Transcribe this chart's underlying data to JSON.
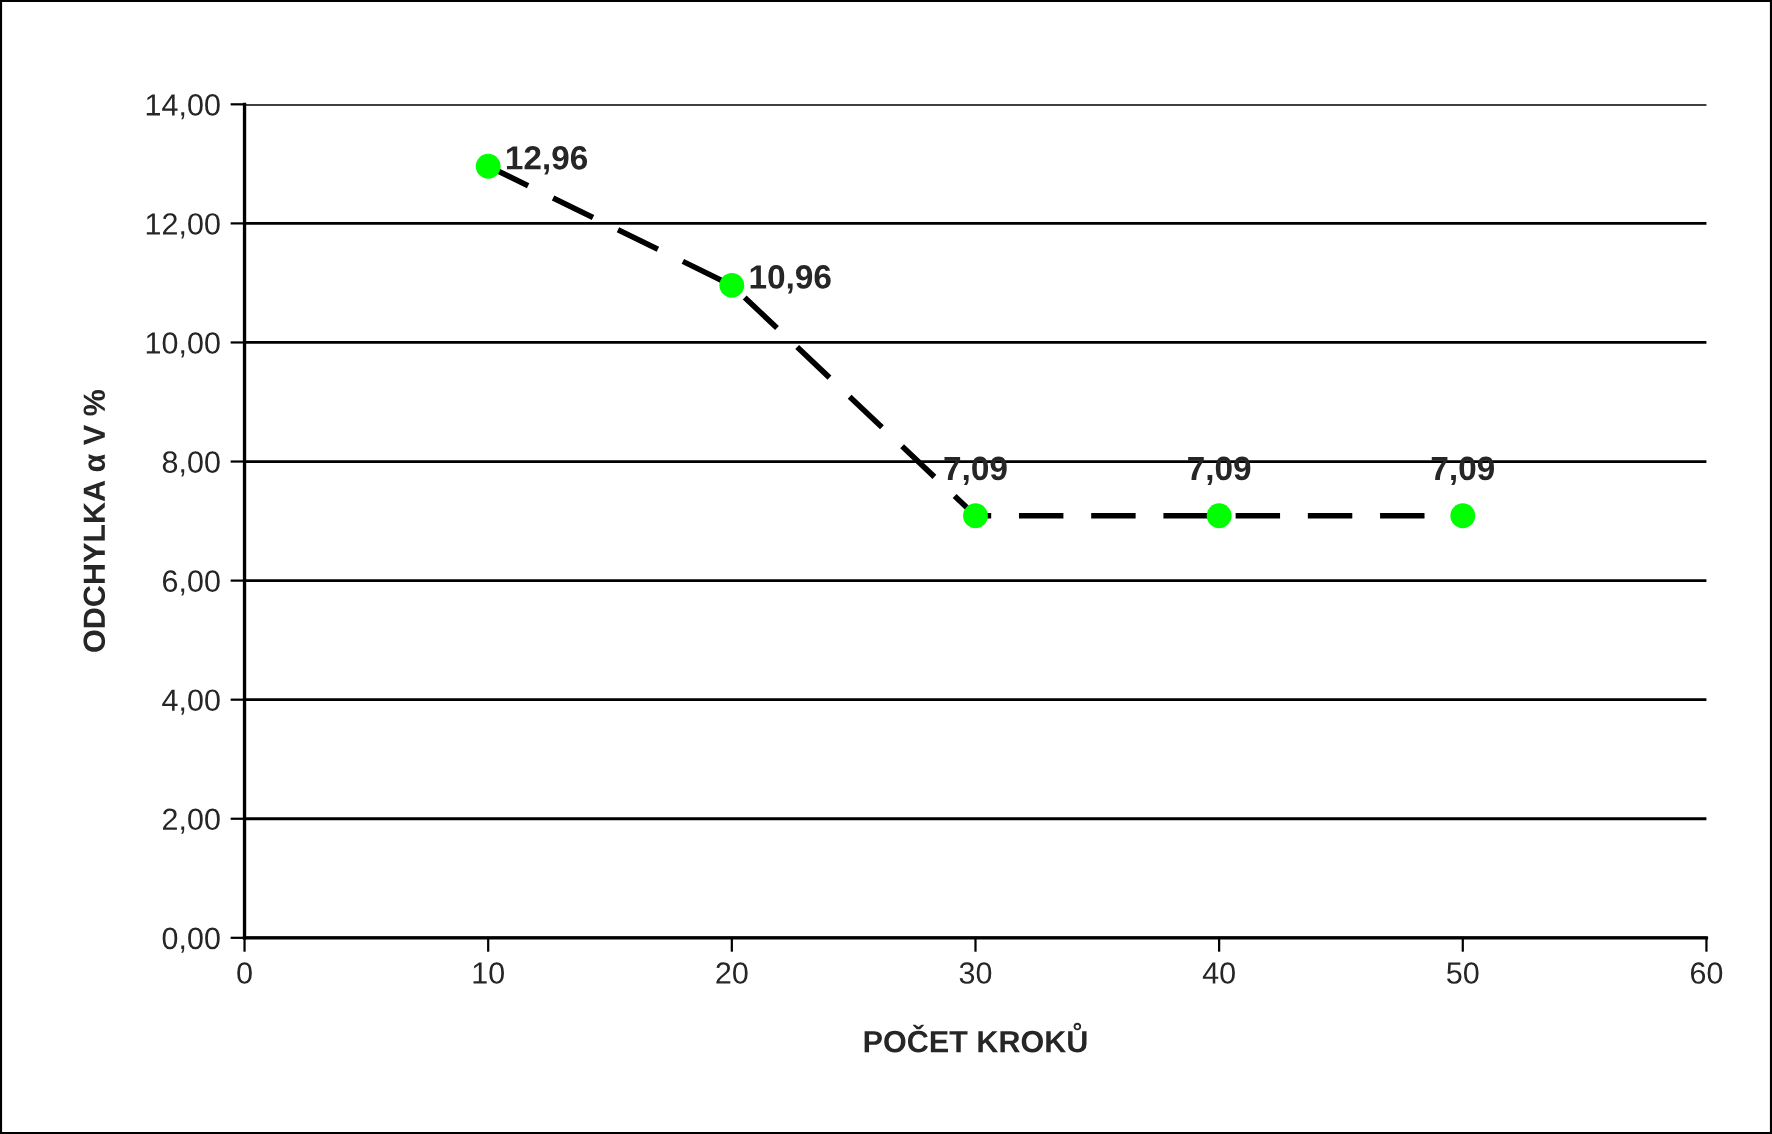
{
  "chart_data": {
    "type": "line",
    "xlabel": "POČET KROKŮ",
    "ylabel": "ODCHYLKA α V %",
    "x": [
      10,
      20,
      30,
      40,
      50
    ],
    "series": [
      {
        "color": "#000000",
        "colors": [
          "#00ff00",
          "#00ff00",
          "#00ff00",
          "#00ff00",
          "#00ff00"
        ],
        "values": [
          12.96,
          10.96,
          7.09,
          7.09,
          7.09
        ],
        "value_labels": [
          "12,96",
          "10,96",
          "7,09",
          "7,09",
          "7,09"
        ]
      }
    ],
    "xlim": [
      0,
      60
    ],
    "xticks": [
      0,
      10,
      20,
      30,
      40,
      50,
      60
    ],
    "ylim": [
      0,
      14
    ],
    "yticks": [
      {
        "value": 0,
        "label": "0,00"
      },
      {
        "value": 2,
        "label": "2,00"
      },
      {
        "value": 4,
        "label": "4,00"
      },
      {
        "value": 6,
        "label": "6,00"
      },
      {
        "value": 8,
        "label": "8,00"
      },
      {
        "value": 10,
        "label": "10,00"
      },
      {
        "value": 12,
        "label": "12,00"
      },
      {
        "value": 14,
        "label": "14,00"
      }
    ],
    "grid": "y",
    "marker": "circle",
    "line_style": "dashed"
  }
}
